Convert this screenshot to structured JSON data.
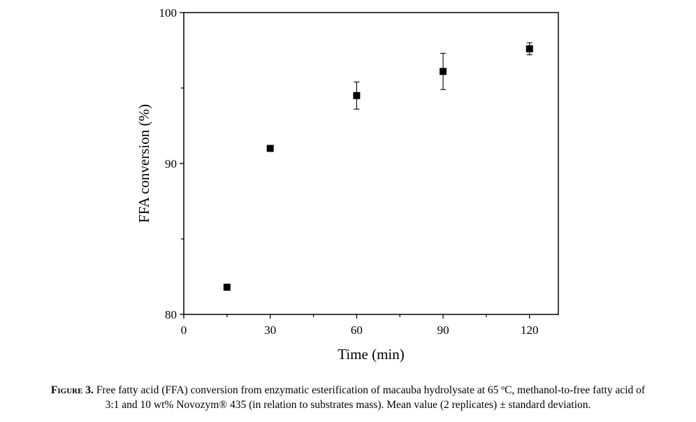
{
  "chart_data": {
    "type": "scatter",
    "xlabel": "Time (min)",
    "ylabel": "FFA conversion (%)",
    "xlim": [
      0,
      130
    ],
    "ylim": [
      80,
      100
    ],
    "x_ticks": [
      "0",
      "30",
      "60",
      "90",
      "120"
    ],
    "y_ticks": [
      "80",
      "90",
      "100"
    ],
    "marker": "filled-square",
    "grid": false,
    "points": [
      {
        "x": 15,
        "y": 81.8,
        "err": 0
      },
      {
        "x": 30,
        "y": 91.0,
        "err": 0
      },
      {
        "x": 60,
        "y": 94.5,
        "err": 0.9
      },
      {
        "x": 90,
        "y": 96.1,
        "err": 1.2
      },
      {
        "x": 120,
        "y": 97.6,
        "err": 0.4
      }
    ]
  },
  "caption": {
    "label": "Figure 3.",
    "line1": "Free fatty acid (FFA) conversion from enzymatic esterification of macauba hydrolysate at 65 ºC, methanol-to-free fatty acid of",
    "line2": "3:1 and 10 wt% Novozym® 435 (in relation to substrates mass). Mean value (2 replicates) ± standard deviation."
  }
}
